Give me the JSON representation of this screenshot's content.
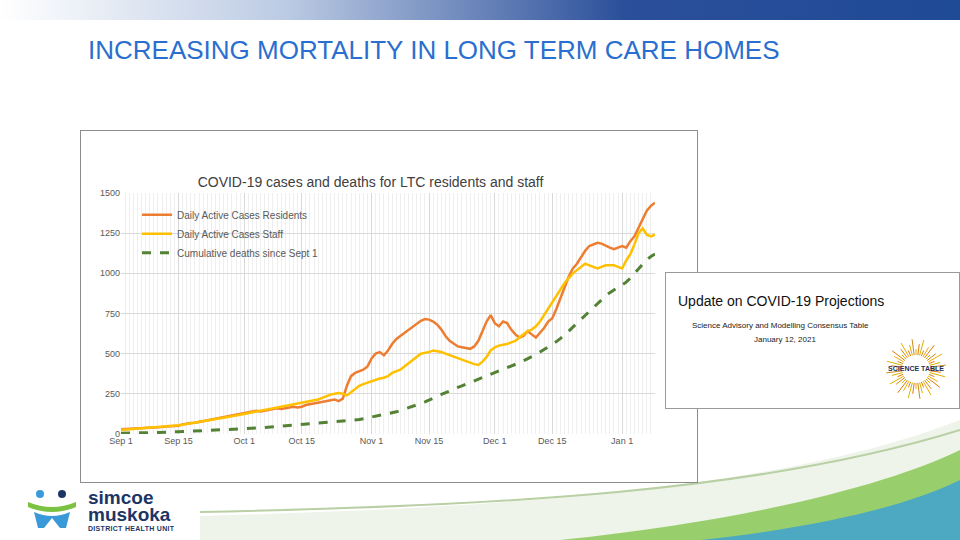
{
  "slide": {
    "title": "INCREASING MORTALITY IN LONG TERM CARE HOMES",
    "inset": {
      "title": "Update on COVID-19 Projections",
      "subtitle": "Science Advisory and Modelling Consensus Table",
      "date": "January 12, 2021",
      "logo": "SCIENCE TABLE"
    },
    "logo": [
      "simcoe",
      "muskoka",
      "DISTRICT HEALTH UNIT"
    ]
  },
  "chart_data": {
    "type": "line",
    "title": "COVID-19 cases and deaths for LTC residents and staff",
    "categories": [
      "Sep 1",
      null,
      null,
      null,
      null,
      null,
      null,
      null,
      null,
      null,
      null,
      null,
      null,
      null,
      "Sep 15",
      null,
      null,
      null,
      null,
      null,
      null,
      null,
      null,
      null,
      null,
      null,
      null,
      null,
      null,
      null,
      "Oct 1",
      null,
      null,
      null,
      null,
      null,
      null,
      null,
      null,
      null,
      null,
      null,
      null,
      null,
      "Oct 15",
      null,
      null,
      null,
      null,
      null,
      null,
      null,
      null,
      null,
      null,
      null,
      null,
      null,
      null,
      null,
      null,
      "Nov 1",
      null,
      null,
      null,
      null,
      null,
      null,
      null,
      null,
      null,
      null,
      null,
      null,
      null,
      "Nov 15",
      null,
      null,
      null,
      null,
      null,
      null,
      null,
      null,
      null,
      null,
      null,
      null,
      null,
      null,
      null,
      "Dec 1",
      null,
      null,
      null,
      null,
      null,
      null,
      null,
      null,
      null,
      null,
      null,
      null,
      null,
      "Dec 15",
      null,
      null,
      null,
      null,
      null,
      null,
      null,
      null,
      null,
      null,
      null,
      null,
      null,
      null,
      null,
      null,
      "Jan 1",
      null,
      null,
      null,
      null,
      null,
      null,
      null,
      null
    ],
    "series": [
      {
        "name": "Daily Active Cases Residents",
        "color": "#ed7d31",
        "line_style": "solid",
        "values": [
          30,
          31,
          33,
          34,
          35,
          36,
          37,
          38,
          40,
          42,
          44,
          46,
          48,
          50,
          52,
          60,
          65,
          68,
          70,
          75,
          80,
          85,
          90,
          95,
          100,
          105,
          110,
          115,
          120,
          125,
          130,
          135,
          140,
          145,
          140,
          145,
          150,
          155,
          160,
          155,
          160,
          165,
          170,
          165,
          170,
          180,
          185,
          190,
          195,
          200,
          205,
          210,
          215,
          205,
          220,
          300,
          360,
          380,
          390,
          400,
          420,
          470,
          500,
          510,
          490,
          520,
          560,
          590,
          610,
          630,
          650,
          670,
          690,
          705,
          715,
          712,
          700,
          680,
          650,
          610,
          580,
          560,
          545,
          540,
          535,
          530,
          545,
          580,
          640,
          700,
          740,
          690,
          670,
          700,
          690,
          650,
          620,
          600,
          610,
          640,
          620,
          600,
          630,
          660,
          700,
          720,
          780,
          850,
          920,
          980,
          1030,
          1060,
          1100,
          1140,
          1170,
          1180,
          1190,
          1185,
          1170,
          1160,
          1150,
          1160,
          1170,
          1160,
          1200,
          1230,
          1280,
          1330,
          1390,
          1420,
          1440
        ]
      },
      {
        "name": "Daily Active Cases Staff",
        "color": "#ffc000",
        "line_style": "solid",
        "values": [
          25,
          27,
          28,
          30,
          32,
          34,
          35,
          37,
          40,
          42,
          45,
          48,
          50,
          52,
          55,
          58,
          62,
          66,
          70,
          74,
          78,
          82,
          86,
          90,
          95,
          100,
          105,
          110,
          115,
          120,
          125,
          130,
          135,
          140,
          145,
          150,
          155,
          160,
          165,
          170,
          175,
          180,
          185,
          190,
          195,
          200,
          205,
          210,
          215,
          225,
          235,
          245,
          250,
          255,
          250,
          240,
          260,
          280,
          300,
          310,
          320,
          330,
          340,
          345,
          350,
          360,
          380,
          390,
          400,
          420,
          440,
          460,
          480,
          500,
          505,
          510,
          520,
          515,
          510,
          500,
          490,
          480,
          470,
          460,
          450,
          440,
          435,
          430,
          450,
          480,
          520,
          540,
          550,
          555,
          560,
          570,
          580,
          600,
          620,
          640,
          650,
          670,
          700,
          740,
          780,
          820,
          860,
          900,
          940,
          970,
          1000,
          1020,
          1040,
          1060,
          1050,
          1040,
          1030,
          1040,
          1050,
          1050,
          1050,
          1040,
          1030,
          1080,
          1120,
          1180,
          1250,
          1280,
          1240,
          1230,
          1240
        ]
      },
      {
        "name": "Cumulative deaths since Sept 1",
        "color": "#548235",
        "line_style": "dash",
        "values": [
          5,
          5,
          6,
          6,
          7,
          7,
          8,
          8,
          9,
          10,
          10,
          11,
          12,
          13,
          14,
          15,
          16,
          17,
          18,
          19,
          20,
          21,
          22,
          23,
          24,
          25,
          26,
          27,
          28,
          29,
          30,
          32,
          34,
          36,
          38,
          40,
          42,
          44,
          46,
          48,
          50,
          52,
          54,
          56,
          58,
          60,
          62,
          64,
          66,
          68,
          70,
          72,
          74,
          76,
          78,
          80,
          83,
          86,
          90,
          95,
          100,
          105,
          110,
          115,
          120,
          125,
          130,
          138,
          146,
          154,
          162,
          170,
          180,
          190,
          200,
          210,
          222,
          234,
          246,
          258,
          270,
          280,
          290,
          300,
          310,
          320,
          330,
          340,
          350,
          360,
          370,
          380,
          390,
          400,
          410,
          420,
          432,
          444,
          456,
          468,
          480,
          495,
          510,
          525,
          540,
          555,
          575,
          595,
          615,
          640,
          665,
          690,
          715,
          740,
          765,
          790,
          815,
          840,
          860,
          880,
          895,
          910,
          925,
          945,
          970,
          1000,
          1030,
          1060,
          1085,
          1105,
          1120
        ]
      }
    ],
    "ylim": [
      0,
      1500
    ],
    "yticks": [
      0,
      250,
      500,
      750,
      1000,
      1250,
      1500
    ],
    "grid": true,
    "legend": "upper left"
  }
}
